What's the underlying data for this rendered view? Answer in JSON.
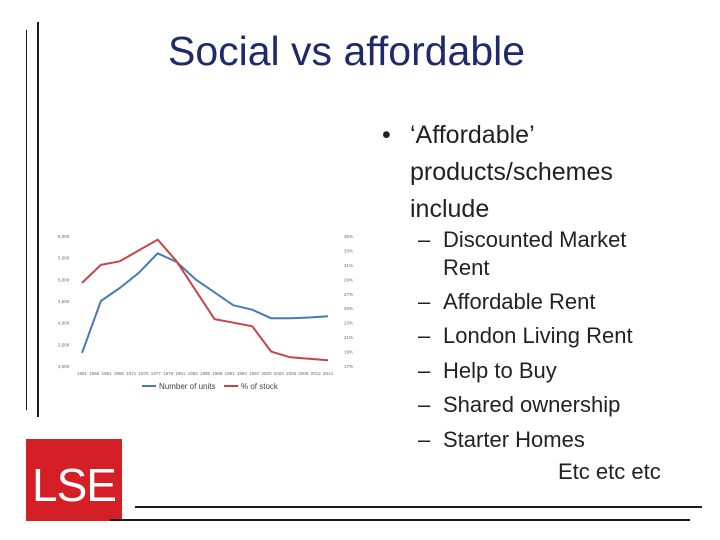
{
  "slide": {
    "title": "Social vs affordable",
    "bullet": {
      "marker": "•",
      "text": "‘Affordable’ products/schemes include"
    },
    "sub_items": [
      {
        "marker": "–",
        "text": "Discounted Market Rent"
      },
      {
        "marker": "–",
        "text": "Affordable Rent"
      },
      {
        "marker": "–",
        "text": "London Living Rent"
      },
      {
        "marker": "–",
        "text": "Help to Buy"
      },
      {
        "marker": "–",
        "text": "Shared ownership"
      },
      {
        "marker": "–",
        "text": "Starter Homes"
      }
    ],
    "footer_text": "Etc etc etc"
  },
  "logo": {
    "text": "LSE",
    "background": "#d41f26",
    "foreground": "#ffffff"
  },
  "colors": {
    "title": "#1f2a6b",
    "body_text": "#222222"
  },
  "chart_data": {
    "type": "line",
    "x": [
      "1951",
      "1956",
      "1961",
      "1966",
      "1971",
      "1976",
      "1981",
      "1986",
      "1991",
      "1996",
      "2001",
      "2006",
      "2011",
      "2016"
    ],
    "x_tick_labels": [
      "1951",
      "1956",
      "1961",
      "1966",
      "1971",
      "1975",
      "1977",
      "1979",
      "1981",
      "1983",
      "1986",
      "1988",
      "1991",
      "1994",
      "1997",
      "2000",
      "2003",
      "2006",
      "2009",
      "2012",
      "2014"
    ],
    "left_axis": {
      "ticks": [
        "3,000",
        "3,500",
        "4,000",
        "4,500",
        "5,000",
        "5,500",
        "6,000"
      ]
    },
    "right_axis": {
      "ticks": [
        "17%",
        "19%",
        "21%",
        "23%",
        "25%",
        "27%",
        "29%",
        "31%",
        "33%",
        "35%"
      ]
    },
    "series": [
      {
        "name": "Number of units",
        "color": "#4a7ab5",
        "axis": "left",
        "values": [
          3300,
          4500,
          4800,
          5150,
          5600,
          5400,
          5000,
          4700,
          4400,
          4300,
          4100,
          4100,
          4120,
          4150
        ]
      },
      {
        "name": "% of stock",
        "color": "#c8434a",
        "axis": "right",
        "values": [
          28.5,
          31.0,
          31.5,
          33.0,
          34.5,
          31.5,
          27.5,
          23.5,
          23.0,
          22.5,
          19.0,
          18.2,
          18.0,
          17.8
        ]
      }
    ],
    "legend_position": "bottom",
    "grid": false
  }
}
